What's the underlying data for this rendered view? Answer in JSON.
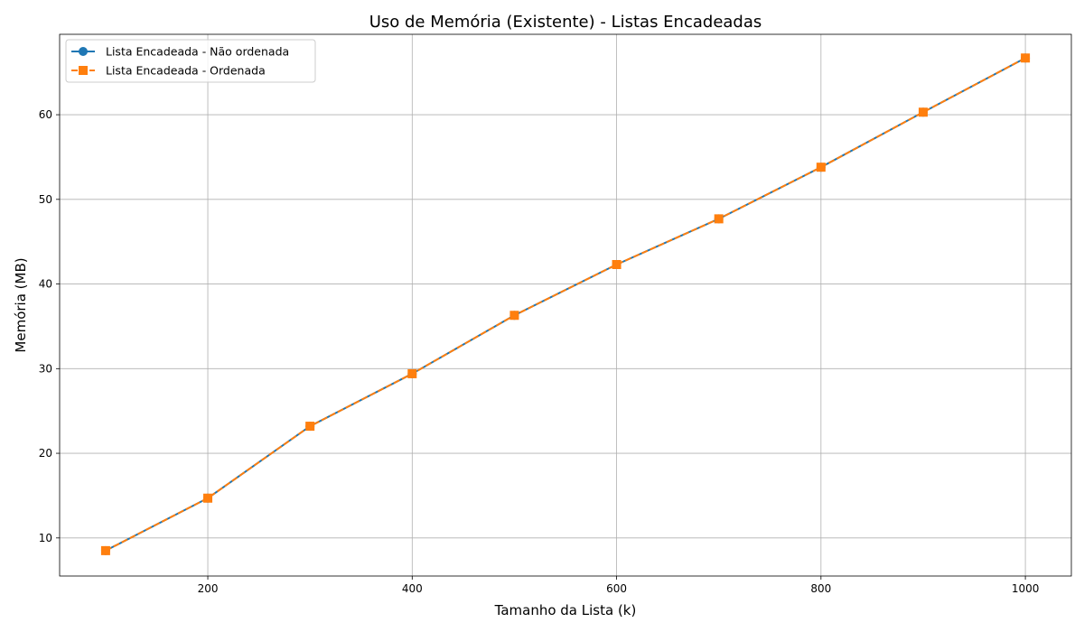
{
  "chart_data": {
    "type": "line",
    "title": "Uso de Memória (Existente) - Listas Encadeadas",
    "xlabel": "Tamanho da Lista (k)",
    "ylabel": "Memória (MB)",
    "x": [
      100,
      200,
      300,
      400,
      500,
      600,
      700,
      800,
      900,
      1000
    ],
    "xlim": [
      55,
      1045
    ],
    "ylim": [
      5.5,
      69.5
    ],
    "xticks": [
      200,
      400,
      600,
      800,
      1000
    ],
    "yticks": [
      10,
      20,
      30,
      40,
      50,
      60
    ],
    "grid": true,
    "legend_position": "top-left",
    "series": [
      {
        "name": "Lista Encadeada - Não ordenada",
        "values": [
          8.5,
          14.7,
          23.2,
          29.4,
          36.3,
          42.3,
          47.7,
          53.8,
          60.3,
          66.7
        ],
        "color": "#1f77b4",
        "marker": "circle",
        "linestyle": "solid"
      },
      {
        "name": "Lista Encadeada - Ordenada",
        "values": [
          8.5,
          14.7,
          23.2,
          29.4,
          36.3,
          42.3,
          47.7,
          53.8,
          60.3,
          66.7
        ],
        "color": "#ff7f0e",
        "marker": "square",
        "linestyle": "dashed"
      }
    ]
  }
}
